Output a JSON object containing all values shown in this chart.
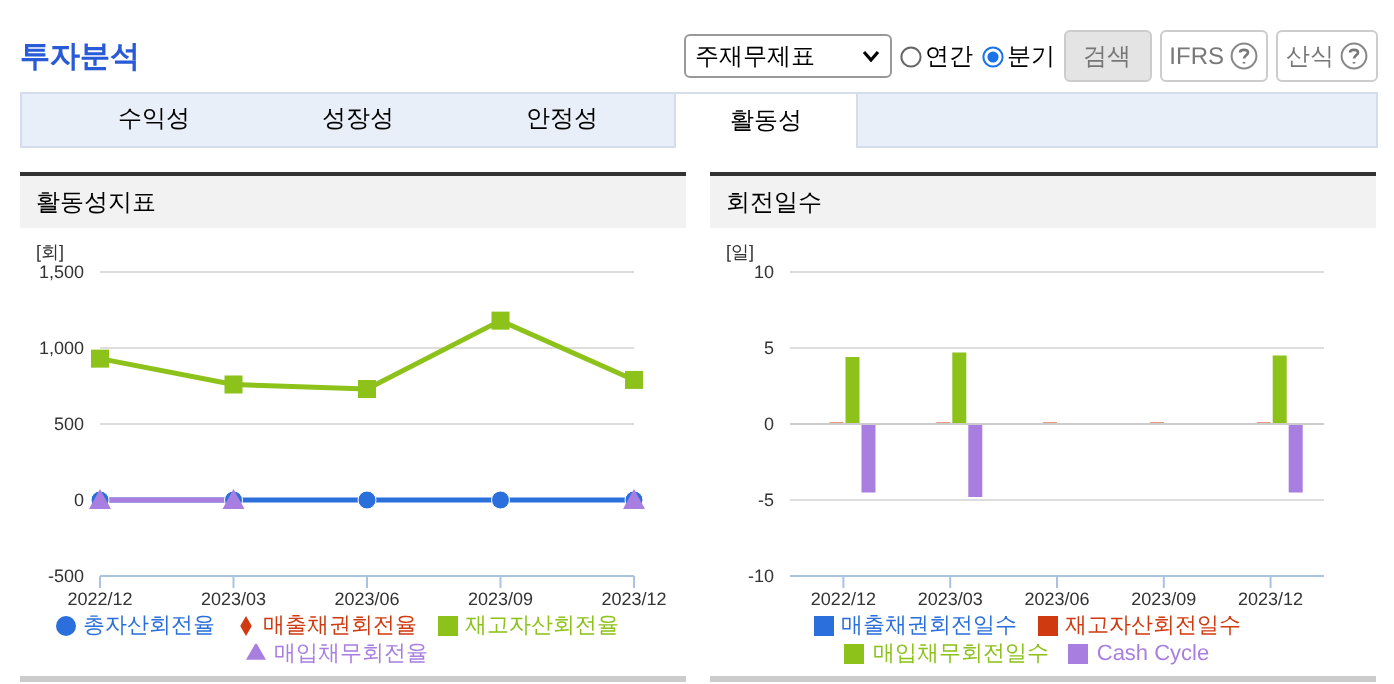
{
  "chart_data": [
    {
      "type": "other",
      "title": "투자분석",
      "annotations": [
        "주재무제표",
        "연간",
        "분기",
        "검색",
        "IFRS",
        "산식",
        "수익성",
        "성장성",
        "안정성",
        "활동성"
      ]
    },
    {
      "type": "line",
      "title": "활동성지표",
      "ylabel": "[회]",
      "categories": [
        "2022/12",
        "2023/03",
        "2023/06",
        "2023/09",
        "2023/12"
      ],
      "ylim": [
        -500,
        1500
      ],
      "yticks": [
        {
          "value": -500,
          "label": "-500"
        },
        {
          "value": 0,
          "label": "0"
        },
        {
          "value": 500,
          "label": "500"
        },
        {
          "value": 1000,
          "label": "1,000"
        },
        {
          "value": 1500,
          "label": "1,500"
        }
      ],
      "grid": "y",
      "legend": "bottom",
      "series": [
        {
          "name": "총자산회전율",
          "color": "#2a6fdb",
          "marker": "circle",
          "values": [
            0,
            0,
            0,
            0,
            0
          ]
        },
        {
          "name": "매출채권회전율",
          "color": "#d03a10",
          "marker": "diamond",
          "values": [
            null,
            null,
            null,
            null,
            null
          ]
        },
        {
          "name": "재고자산회전율",
          "color": "#8cc21a",
          "marker": "square",
          "values": [
            930,
            760,
            730,
            1180,
            790
          ]
        },
        {
          "name": "매입채무회전율",
          "color": "#a87fe0",
          "marker": "triangle",
          "values": [
            0,
            0,
            null,
            null,
            0
          ]
        }
      ]
    },
    {
      "type": "bar",
      "title": "회전일수",
      "ylabel": "[일]",
      "categories": [
        "2022/12",
        "2023/03",
        "2023/06",
        "2023/09",
        "2023/12"
      ],
      "ylim": [
        -10,
        10
      ],
      "yticks": [
        -10,
        -5,
        0,
        5,
        10
      ],
      "grid": "y",
      "legend": "bottom",
      "series": [
        {
          "name": "매출채권회전일수",
          "color": "#2a6fdb",
          "values": [
            null,
            null,
            null,
            null,
            null
          ]
        },
        {
          "name": "재고자산회전일수",
          "color": "#d03a10",
          "values": [
            0.1,
            0.1,
            0.1,
            0.1,
            0.1
          ]
        },
        {
          "name": "매입채무회전일수",
          "color": "#8cc21a",
          "values": [
            4.4,
            4.7,
            null,
            null,
            4.5
          ]
        },
        {
          "name": "Cash Cycle",
          "color": "#a87fe0",
          "values": [
            -4.5,
            -4.8,
            null,
            null,
            -4.5
          ]
        }
      ]
    }
  ]
}
